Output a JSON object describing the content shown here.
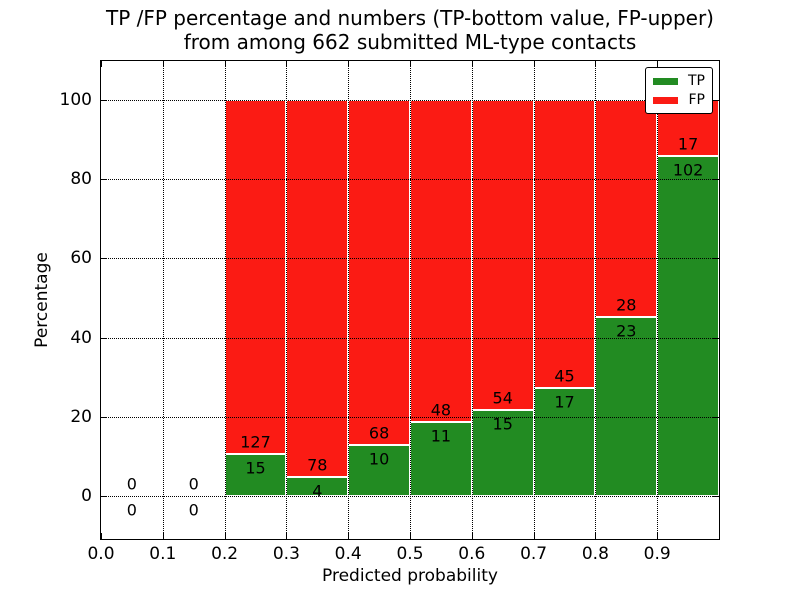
{
  "title": {
    "line1": "TP /FP percentage and numbers (TP-bottom value, FP-upper)",
    "line2": "from among 662 submitted ML-type contacts"
  },
  "axes": {
    "xlabel": "Predicted probability",
    "ylabel": "Percentage",
    "x_tick_labels": [
      "0.0",
      "0.1",
      "0.2",
      "0.3",
      "0.4",
      "0.5",
      "0.6",
      "0.7",
      "0.8",
      "0.9"
    ],
    "y_tick_labels": [
      "0",
      "20",
      "40",
      "60",
      "80",
      "100"
    ]
  },
  "legend": {
    "items": [
      {
        "label": "TP",
        "color": "#228b22"
      },
      {
        "label": "FP",
        "color": "#fb1b14"
      }
    ]
  },
  "colors": {
    "tp": "#228b22",
    "fp": "#fb1b14",
    "grid": "#000000",
    "frame": "#000000",
    "bar_edge": "#ffffff",
    "background": "#ffffff"
  },
  "chart_data": {
    "type": "bar",
    "stacked": true,
    "title": "TP /FP percentage and numbers (TP-bottom value, FP-upper) from among 662 submitted ML-type contacts",
    "xlabel": "Predicted probability",
    "ylabel": "Percentage",
    "xlim": [
      0.0,
      1.0
    ],
    "ylim": [
      -10.8,
      109.8
    ],
    "x_ticks": [
      0.0,
      0.1,
      0.2,
      0.3,
      0.4,
      0.5,
      0.6,
      0.7,
      0.8,
      0.9
    ],
    "y_ticks": [
      0,
      20,
      40,
      60,
      80,
      100
    ],
    "grid": true,
    "legend_position": "upper right",
    "bin_width": 0.1,
    "bin_starts": [
      0.0,
      0.1,
      0.2,
      0.3,
      0.4,
      0.5,
      0.6,
      0.7,
      0.8,
      0.9
    ],
    "series": [
      {
        "name": "TP",
        "color": "#228b22",
        "counts": [
          0,
          0,
          15,
          4,
          10,
          11,
          15,
          17,
          23,
          102
        ]
      },
      {
        "name": "FP",
        "color": "#fb1b14",
        "counts": [
          0,
          0,
          127,
          78,
          68,
          48,
          54,
          45,
          28,
          17
        ]
      }
    ],
    "tp_percent": [
      0,
      0,
      10.56,
      4.88,
      12.82,
      18.64,
      21.74,
      27.42,
      45.1,
      85.71
    ],
    "total": 662
  }
}
